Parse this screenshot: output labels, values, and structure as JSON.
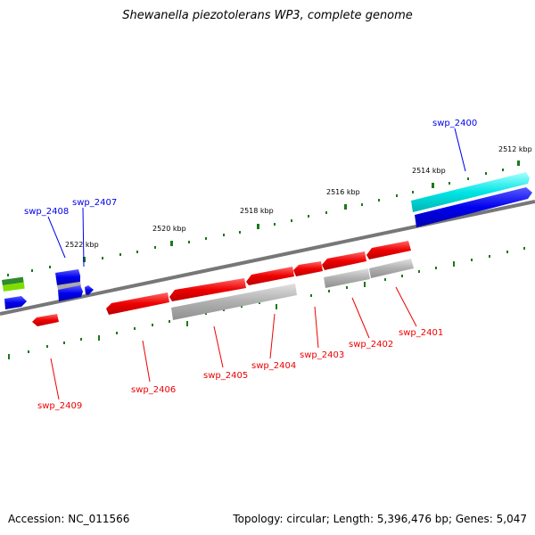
{
  "title": "Shewanella piezotolerans WP3, complete genome",
  "footer": {
    "accession": "Accession: NC_011566",
    "summary": "Topology: circular; Length: 5,396,476 bp; Genes: 5,047"
  },
  "ticks": [
    "2512 kbp",
    "2514 kbp",
    "2516 kbp",
    "2518 kbp",
    "2520 kbp",
    "2522 kbp"
  ],
  "genes_forward": [
    "swp_2400",
    "swp_2407",
    "swp_2408"
  ],
  "genes_reverse": [
    "swp_2401",
    "swp_2402",
    "swp_2403",
    "swp_2404",
    "swp_2405",
    "swp_2406",
    "swp_2409"
  ],
  "colors": {
    "forward": "#0000ee",
    "reverse": "#ee0000",
    "cds_forward": "#00e5e5",
    "cds_reverse": "#aaaaaa",
    "backbone": "#777777",
    "tick": "#1a7a1a",
    "partial_top": "#2e8b2e",
    "partial_bottom": "#7fdd00"
  }
}
